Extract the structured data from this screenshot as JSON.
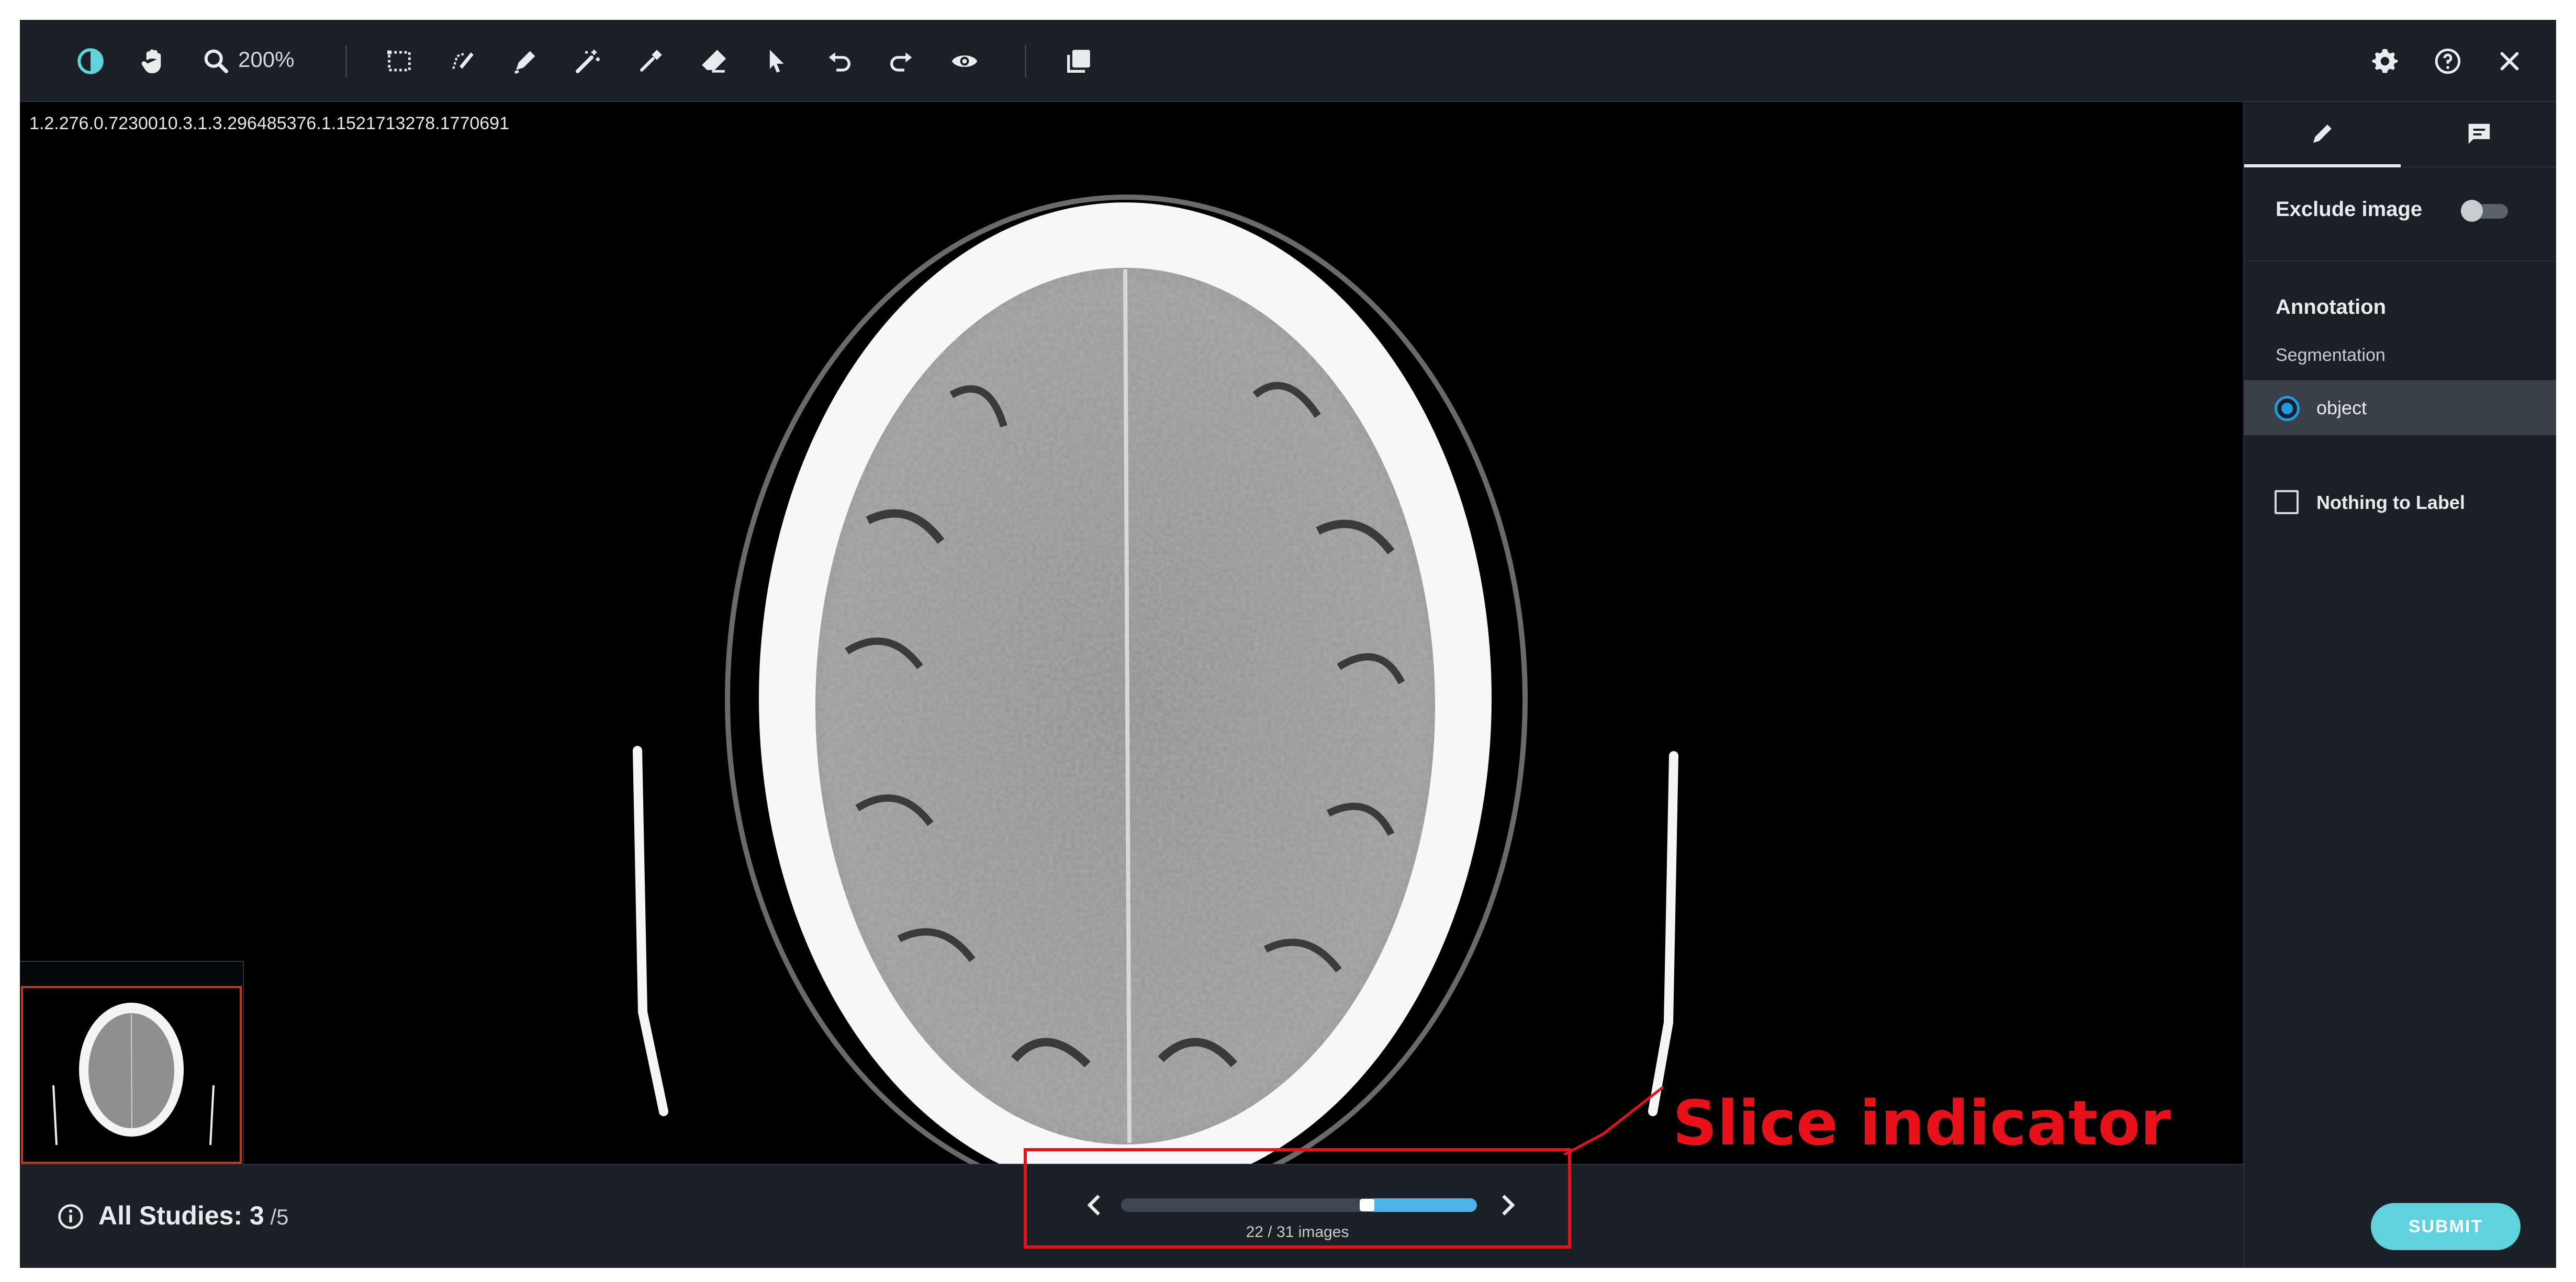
{
  "toolbar": {
    "zoom_label": "200%",
    "tools": [
      "contrast-icon",
      "pan-hand-icon",
      "zoom-icon",
      "bounding-box-icon",
      "polygon-draw-icon",
      "pen-icon",
      "magic-wand-icon",
      "eyedropper-icon",
      "eraser-icon",
      "pointer-icon",
      "undo-icon",
      "redo-icon",
      "visibility-eye-icon",
      "layers-icon"
    ],
    "right_icons": [
      "gear-icon",
      "help-icon",
      "close-icon"
    ]
  },
  "viewer": {
    "study_uid": "1.2.276.0.7230010.3.1.3.296485376.1.1521713278.1770691"
  },
  "side_panel": {
    "tabs": [
      "pencil-icon",
      "comment-icon"
    ],
    "exclude_label": "Exclude image",
    "exclude_on": false,
    "annotation_heading": "Annotation",
    "segmentation_label": "Segmentation",
    "object_label": "object",
    "nothing_label": "Nothing to Label"
  },
  "footer": {
    "studies_prefix": "All Studies: ",
    "studies_count": "3",
    "studies_total": " /5"
  },
  "slice": {
    "current": 22,
    "total": 31,
    "count_label": "22 / 31 images"
  },
  "callout": {
    "text": "Slice indicator"
  },
  "submit_label": "SUBMIT",
  "colors": {
    "accent": "#1e9be5",
    "submit": "#5ed3de",
    "highlight_red": "#e8111a",
    "slider_fill": "#4fb3e8"
  }
}
